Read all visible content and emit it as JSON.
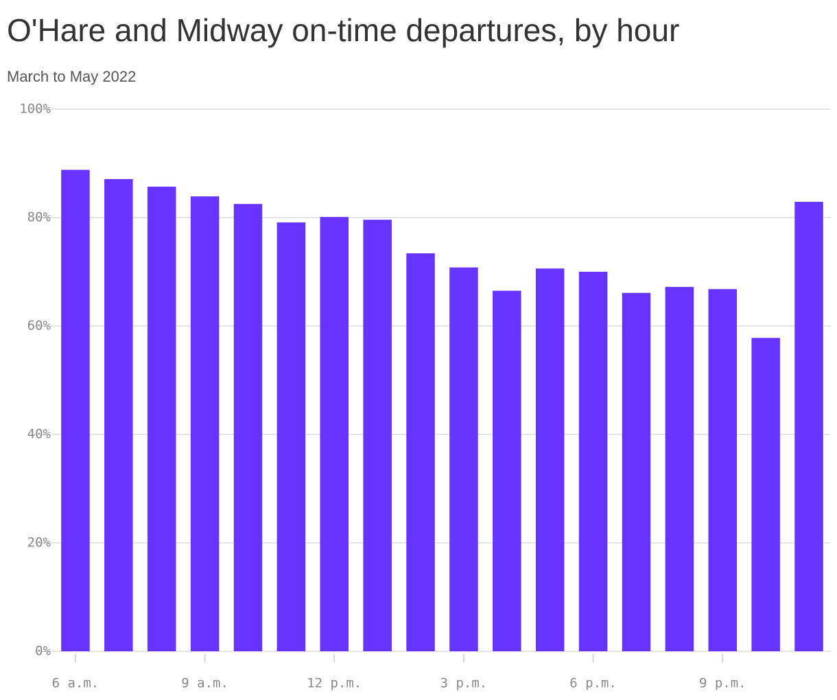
{
  "chart_data": {
    "type": "bar",
    "title": "O'Hare and Midway on-time departures, by hour",
    "subtitle": "March to May 2022",
    "categories": [
      "6 a.m.",
      null,
      null,
      "9 a.m.",
      null,
      null,
      "12 p.m.",
      null,
      null,
      "3 p.m.",
      null,
      null,
      "6 p.m.",
      null,
      null,
      "9 p.m.",
      null,
      null
    ],
    "values": [
      88.8,
      87.1,
      85.7,
      83.9,
      82.5,
      79.1,
      80.1,
      79.6,
      73.4,
      70.8,
      66.5,
      70.6,
      70.0,
      66.1,
      67.2,
      66.8,
      57.8,
      82.9
    ],
    "color": "#6633ff",
    "ylim": [
      0,
      100
    ],
    "yticks": [
      {
        "value": 0,
        "label": "0%"
      },
      {
        "value": 20,
        "label": "20%"
      },
      {
        "value": 40,
        "label": "40%"
      },
      {
        "value": 60,
        "label": "60%"
      },
      {
        "value": 80,
        "label": "80%"
      },
      {
        "value": 100,
        "label": "100%"
      }
    ],
    "grid": true
  }
}
